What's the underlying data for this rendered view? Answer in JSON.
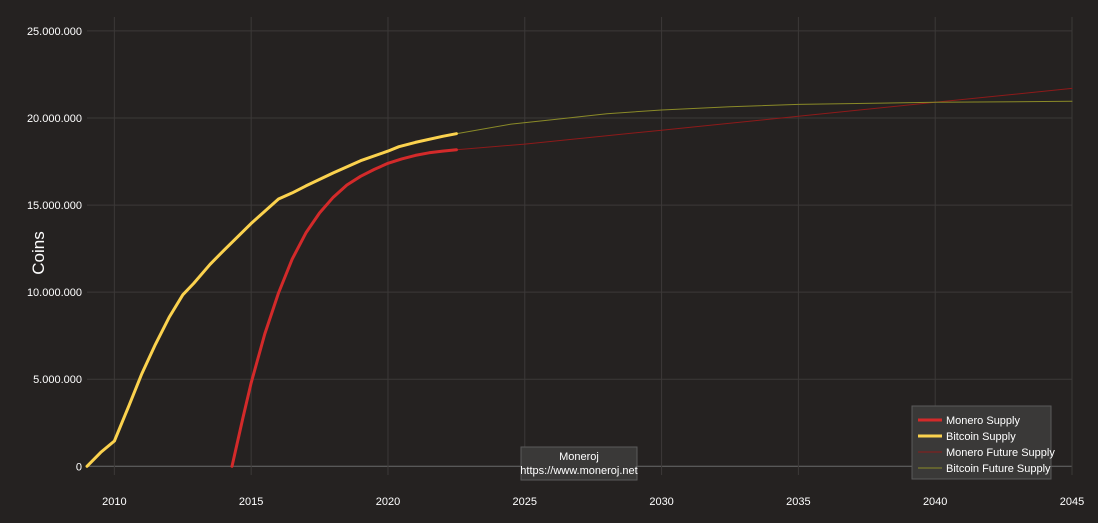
{
  "chart_data": {
    "type": "line",
    "title": "",
    "xlabel": "",
    "ylabel": "Coins",
    "xlim": [
      2009,
      2045
    ],
    "ylim": [
      -500000,
      25800000
    ],
    "x_ticks": [
      2010,
      2015,
      2020,
      2025,
      2030,
      2035,
      2040,
      2045
    ],
    "y_ticks": [
      0,
      5000000,
      10000000,
      15000000,
      20000000,
      25000000
    ],
    "y_tick_labels": [
      "0",
      "5.000.000",
      "10.000.000",
      "15.000.000",
      "20.000.000",
      "25.000.000"
    ],
    "grid": true,
    "legend_position": "bottom-right",
    "series": [
      {
        "name": "Monero Supply",
        "color": "#d32a2a",
        "style": "thick",
        "x": [
          2014.3,
          2014.7,
          2015.0,
          2015.5,
          2016.0,
          2016.5,
          2017.0,
          2017.5,
          2018.0,
          2018.5,
          2019.0,
          2019.5,
          2020.0,
          2020.5,
          2021.0,
          2021.5,
          2022.0,
          2022.5
        ],
        "y": [
          0,
          2800000,
          4800000,
          7600000,
          9950000,
          11900000,
          13400000,
          14550000,
          15450000,
          16150000,
          16650000,
          17050000,
          17400000,
          17650000,
          17850000,
          18000000,
          18100000,
          18180000
        ]
      },
      {
        "name": "Bitcoin Supply",
        "color": "#fbd24e",
        "style": "thick",
        "x": [
          2009.0,
          2009.5,
          2010.0,
          2010.5,
          2011.0,
          2011.5,
          2012.0,
          2012.5,
          2012.9,
          2013.5,
          2014.0,
          2015.0,
          2016.0,
          2016.5,
          2017.0,
          2018.0,
          2019.0,
          2020.0,
          2020.4,
          2021.0,
          2022.0,
          2022.5
        ],
        "y": [
          0,
          800000,
          1450000,
          3350000,
          5300000,
          7000000,
          8550000,
          9850000,
          10500000,
          11600000,
          12400000,
          13950000,
          15350000,
          15700000,
          16100000,
          16850000,
          17550000,
          18100000,
          18350000,
          18600000,
          18950000,
          19100000
        ]
      },
      {
        "name": "Monero Future Supply",
        "color": "#8e1a1a",
        "style": "thin",
        "x": [
          2022.5,
          2025,
          2030,
          2035,
          2040,
          2045
        ],
        "y": [
          18180000,
          18500000,
          19300000,
          20100000,
          20900000,
          21700000
        ]
      },
      {
        "name": "Bitcoin Future Supply",
        "color": "#8a8a28",
        "style": "thin",
        "x": [
          2022.5,
          2024.5,
          2026,
          2028,
          2030,
          2032.5,
          2035,
          2040,
          2045
        ],
        "y": [
          19100000,
          19650000,
          19900000,
          20250000,
          20460000,
          20650000,
          20780000,
          20900000,
          20960000
        ]
      }
    ]
  },
  "watermark": {
    "line1": "Moneroj",
    "line2": "https://www.moneroj.net"
  }
}
